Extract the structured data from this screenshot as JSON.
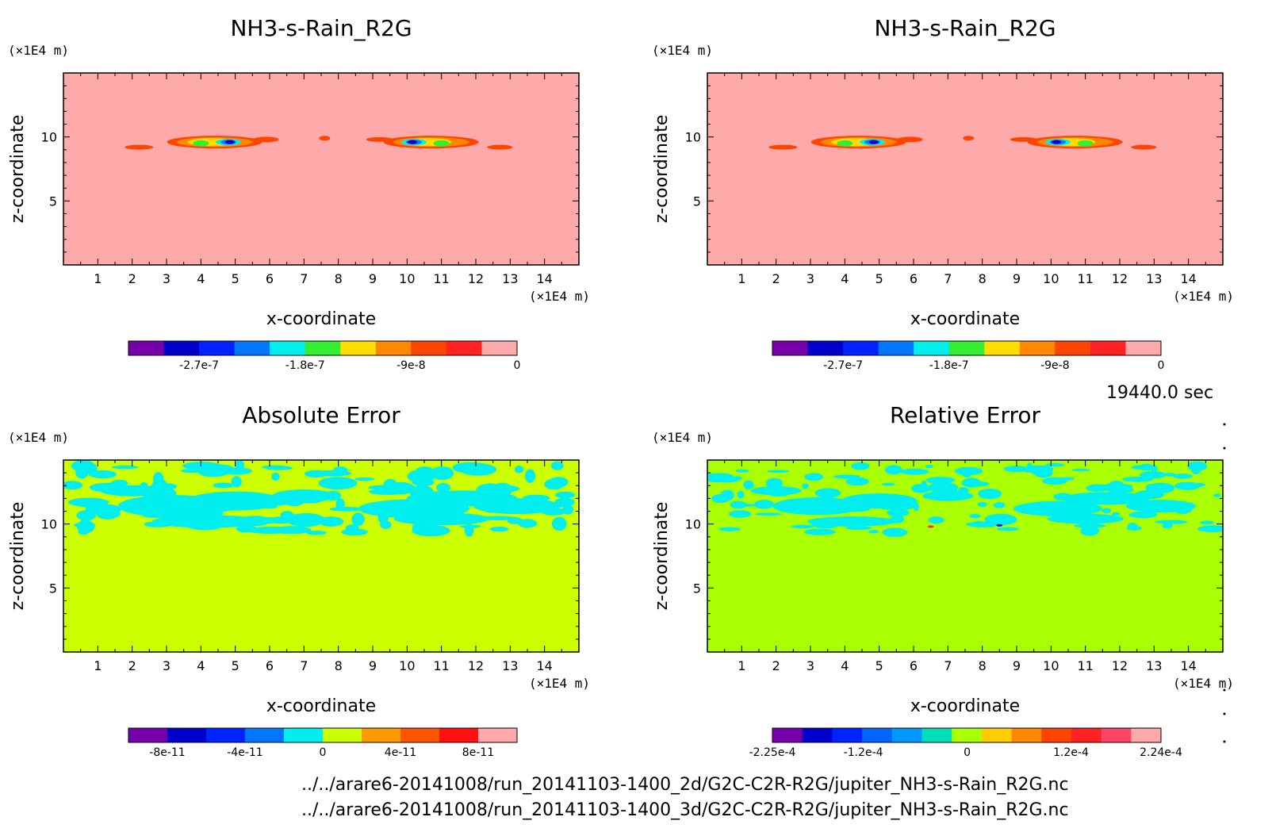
{
  "time_label": "19440.0 sec",
  "file_paths": [
    "../../arare6-20141008/run_20141103-1400_2d/G2C-C2R-R2G/jupiter_NH3-s-Rain_R2G.nc",
    "../../arare6-20141008/run_20141103-1400_3d/G2C-C2R-R2G/jupiter_NH3-s-Rain_R2G.nc"
  ],
  "colors": {
    "bg_rain": "#ffaaaa",
    "bg_abs": "#ccff00",
    "bg_rel": "#aaff00",
    "error_blob": "#00eeee"
  },
  "chart_data": [
    {
      "type": "heatmap",
      "title": "NH3-s-Rain_R2G",
      "xlabel": "x-coordinate",
      "ylabel": "z-coordinate",
      "xunit": "(×1E4 m)",
      "yunit": "(×1E4 m)",
      "xlim": [
        0,
        15
      ],
      "ylim": [
        0,
        15
      ],
      "xticks": [
        "1",
        "2",
        "3",
        "4",
        "5",
        "6",
        "7",
        "8",
        "9",
        "10",
        "11",
        "12",
        "13",
        "14"
      ],
      "yticks": [
        "5",
        "10"
      ],
      "colorbar": {
        "colors": [
          "#7700aa",
          "#0000cc",
          "#0022ff",
          "#0077ff",
          "#00eeee",
          "#33ee33",
          "#ffdd00",
          "#ff8800",
          "#ff4400",
          "#ff2222",
          "#ffaaaa"
        ],
        "labels": [
          "-2.7e-7",
          "-1.8e-7",
          "-9e-8",
          "0"
        ],
        "label_values": [
          -2.7e-07,
          -1.8e-07,
          -9e-08,
          0
        ],
        "range": [
          -3.3e-07,
          0
        ]
      }
    },
    {
      "type": "heatmap",
      "title": "NH3-s-Rain_R2G",
      "xlabel": "x-coordinate",
      "ylabel": "z-coordinate",
      "xunit": "(×1E4 m)",
      "yunit": "(×1E4 m)",
      "xlim": [
        0,
        15
      ],
      "ylim": [
        0,
        15
      ],
      "xticks": [
        "1",
        "2",
        "3",
        "4",
        "5",
        "6",
        "7",
        "8",
        "9",
        "10",
        "11",
        "12",
        "13",
        "14"
      ],
      "yticks": [
        "5",
        "10"
      ],
      "colorbar": {
        "colors": [
          "#7700aa",
          "#0000cc",
          "#0022ff",
          "#0077ff",
          "#00eeee",
          "#33ee33",
          "#ffdd00",
          "#ff8800",
          "#ff4400",
          "#ff2222",
          "#ffaaaa"
        ],
        "labels": [
          "-2.7e-7",
          "-1.8e-7",
          "-9e-8",
          "0"
        ],
        "label_values": [
          -2.7e-07,
          -1.8e-07,
          -9e-08,
          0
        ],
        "range": [
          -3.3e-07,
          0
        ]
      }
    },
    {
      "type": "heatmap",
      "title": "Absolute Error",
      "xlabel": "x-coordinate",
      "ylabel": "z-coordinate",
      "xunit": "(×1E4 m)",
      "yunit": "(×1E4 m)",
      "xlim": [
        0,
        15
      ],
      "ylim": [
        0,
        15
      ],
      "xticks": [
        "1",
        "2",
        "3",
        "4",
        "5",
        "6",
        "7",
        "8",
        "9",
        "10",
        "11",
        "12",
        "13",
        "14"
      ],
      "yticks": [
        "5",
        "10"
      ],
      "colorbar": {
        "colors": [
          "#7700aa",
          "#0000cc",
          "#0022ff",
          "#0077ff",
          "#00eeee",
          "#ccff00",
          "#ff9900",
          "#ff5500",
          "#ff1111",
          "#ffaaaa"
        ],
        "labels": [
          "-8e-11",
          "-4e-11",
          "0",
          "4e-11",
          "8e-11"
        ],
        "label_values": [
          -8e-11,
          -4e-11,
          0,
          4e-11,
          8e-11
        ],
        "range": [
          -1e-10,
          1e-10
        ]
      }
    },
    {
      "type": "heatmap",
      "title": "Relative Error",
      "xlabel": "x-coordinate",
      "ylabel": "z-coordinate",
      "xunit": "(×1E4 m)",
      "yunit": "(×1E4 m)",
      "xlim": [
        0,
        15
      ],
      "ylim": [
        0,
        15
      ],
      "xticks": [
        "1",
        "2",
        "3",
        "4",
        "5",
        "6",
        "7",
        "8",
        "9",
        "10",
        "11",
        "12",
        "13",
        "14"
      ],
      "yticks": [
        "5",
        "10"
      ],
      "colorbar": {
        "colors": [
          "#7700aa",
          "#0000cc",
          "#0022ff",
          "#0066ff",
          "#0099ff",
          "#00ddbb",
          "#aaff00",
          "#ffcc00",
          "#ff8800",
          "#ff4400",
          "#ff2222",
          "#ff4466",
          "#ffaaaa"
        ],
        "labels": [
          "-2.25e-4",
          "-1.2e-4",
          "0",
          "1.2e-4",
          "2.24e-4"
        ],
        "label_values": [
          -0.000225,
          -0.00012,
          0,
          0.00012,
          0.000224
        ],
        "range": [
          -0.000225,
          0.000224
        ]
      }
    }
  ]
}
